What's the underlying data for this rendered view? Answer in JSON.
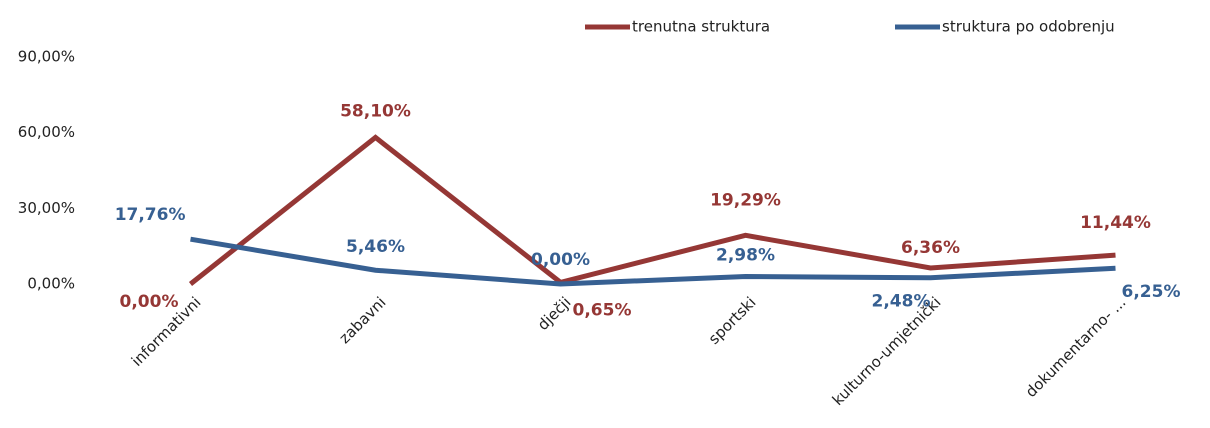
{
  "chart_data": {
    "type": "line",
    "categories": [
      "informativni",
      "zabavni",
      "dječji",
      "sportski",
      "kulturno-umjetnički",
      "dokumentarno- ..."
    ],
    "series": [
      {
        "name": "trenutna struktura",
        "color": "#953735",
        "values": [
          0,
          58.1,
          0.65,
          19.29,
          6.36,
          11.44
        ],
        "value_labels": [
          "0,00%",
          "58,10%",
          "0,65%",
          "19,29%",
          "6,36%",
          "11,44%"
        ]
      },
      {
        "name": "struktura po odobrenju",
        "color": "#376092",
        "values": [
          17.76,
          5.46,
          0,
          2.98,
          2.48,
          6.25
        ],
        "value_labels": [
          "17,76%",
          "5,46%",
          "0,00%",
          "2,98%",
          "2,48%",
          "6,25%"
        ]
      }
    ],
    "ylim": [
      0,
      90
    ],
    "yticks": [
      {
        "value": 0,
        "label": "0,00%"
      },
      {
        "value": 30,
        "label": "30,00%"
      },
      {
        "value": 60,
        "label": "60,00%"
      },
      {
        "value": 90,
        "label": "90,00%"
      }
    ],
    "grid": false,
    "legend": "top"
  }
}
